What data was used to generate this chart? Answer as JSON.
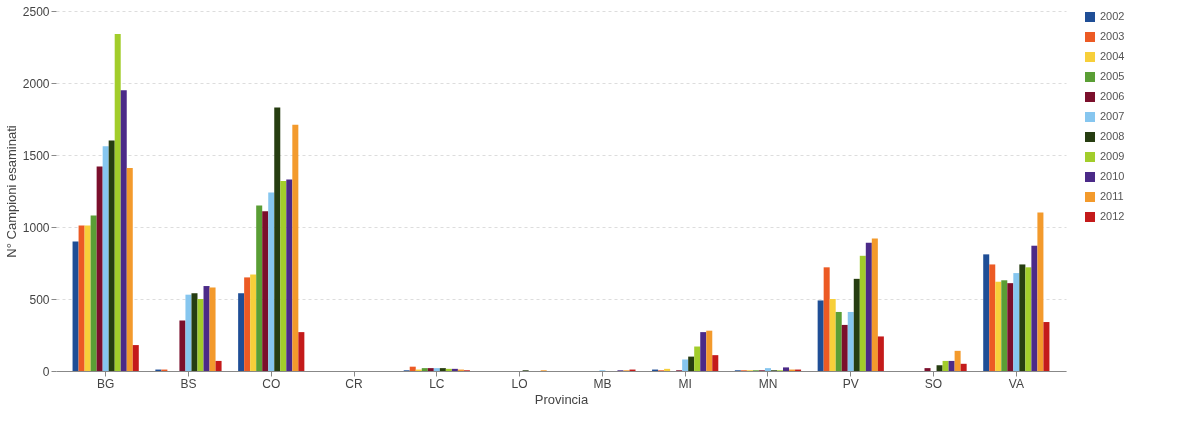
{
  "chart_data": {
    "type": "bar",
    "xlabel": "Provincia",
    "ylabel": "N° Campioni esaminati",
    "categories": [
      "BG",
      "BS",
      "CO",
      "CR",
      "LC",
      "LO",
      "MB",
      "MI",
      "MN",
      "PV",
      "SO",
      "VA"
    ],
    "ylim": [
      0,
      2500
    ],
    "yticks": [
      0,
      500,
      1000,
      1500,
      2000,
      2500
    ],
    "grid": "y",
    "legend": "right",
    "series": [
      {
        "name": "2002",
        "color": "#1f4e96",
        "values": [
          900,
          10,
          540,
          0,
          5,
          0,
          0,
          10,
          5,
          490,
          0,
          810
        ]
      },
      {
        "name": "2003",
        "color": "#ec5a24",
        "values": [
          1010,
          10,
          650,
          0,
          30,
          0,
          0,
          5,
          5,
          720,
          0,
          740
        ]
      },
      {
        "name": "2004",
        "color": "#f7cf3a",
        "values": [
          1010,
          0,
          670,
          0,
          10,
          0,
          0,
          15,
          5,
          500,
          0,
          620
        ]
      },
      {
        "name": "2005",
        "color": "#5a9e35",
        "values": [
          1080,
          0,
          1150,
          0,
          20,
          0,
          0,
          0,
          5,
          410,
          0,
          630
        ]
      },
      {
        "name": "2006",
        "color": "#7b0f2c",
        "values": [
          1420,
          350,
          1110,
          0,
          20,
          0,
          0,
          5,
          5,
          320,
          20,
          610
        ]
      },
      {
        "name": "2007",
        "color": "#86c6ef",
        "values": [
          1560,
          530,
          1240,
          0,
          20,
          0,
          5,
          80,
          20,
          410,
          0,
          680
        ]
      },
      {
        "name": "2008",
        "color": "#263d11",
        "values": [
          1600,
          540,
          1830,
          0,
          20,
          5,
          0,
          100,
          5,
          640,
          40,
          740
        ]
      },
      {
        "name": "2009",
        "color": "#a2cd2b",
        "values": [
          2340,
          500,
          1320,
          0,
          15,
          0,
          0,
          170,
          5,
          800,
          70,
          720
        ]
      },
      {
        "name": "2010",
        "color": "#4b2a88",
        "values": [
          1950,
          590,
          1330,
          0,
          15,
          0,
          5,
          270,
          25,
          890,
          70,
          870
        ]
      },
      {
        "name": "2011",
        "color": "#f39a2c",
        "values": [
          1410,
          580,
          1710,
          0,
          10,
          5,
          5,
          280,
          10,
          920,
          140,
          1100
        ]
      },
      {
        "name": "2012",
        "color": "#c41a1a",
        "values": [
          180,
          70,
          270,
          0,
          5,
          0,
          10,
          110,
          10,
          240,
          50,
          340
        ]
      }
    ]
  }
}
